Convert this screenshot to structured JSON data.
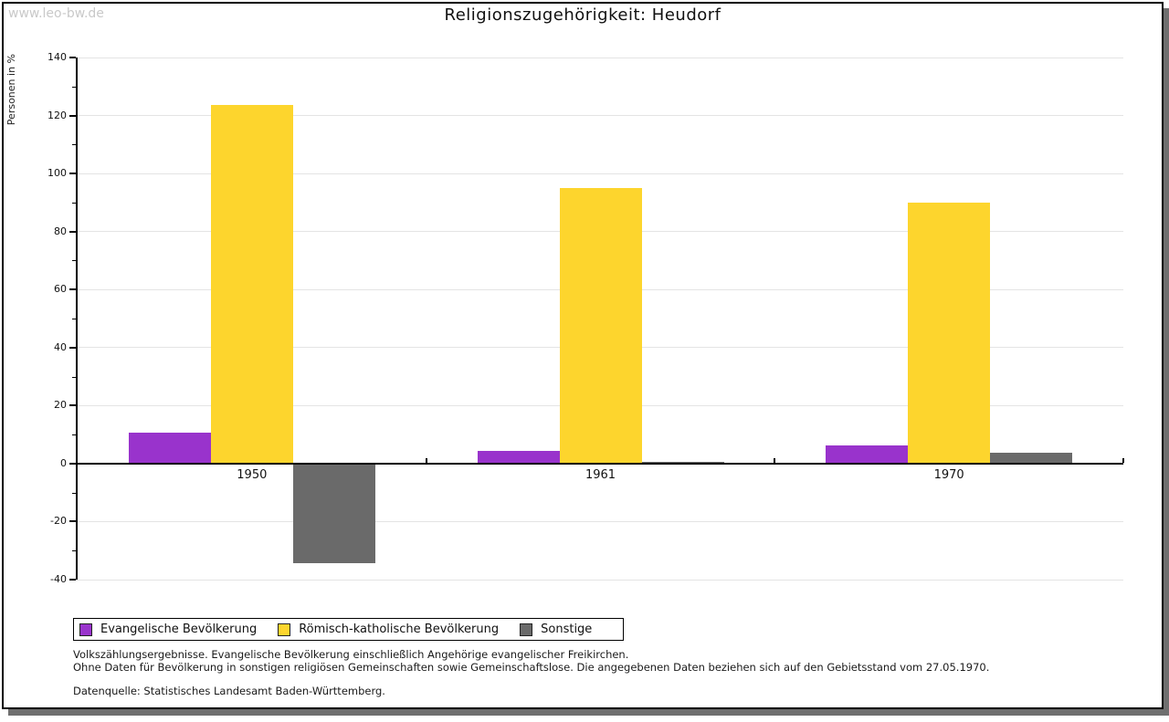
{
  "watermark": "www.leo-bw.de",
  "header": {
    "title": "Religionszugehörigkeit: Heudorf"
  },
  "chart_data": {
    "type": "bar",
    "title": "Religionszugehörigkeit: Heudorf",
    "xlabel": "",
    "ylabel": "Personen in %",
    "categories": [
      "1950",
      "1961",
      "1970"
    ],
    "series": [
      {
        "name": "Evangelische Bevölkerung",
        "color": "#9933cc",
        "values": [
          10.8,
          4.5,
          6.3
        ]
      },
      {
        "name": "Römisch-katholische Bevölkerung",
        "color": "#fdd52d",
        "values": [
          123.5,
          95.0,
          90.0
        ]
      },
      {
        "name": "Sonstige",
        "color": "#6a6a6a",
        "values": [
          -34.3,
          0.5,
          3.8
        ]
      }
    ],
    "ylim": [
      -40,
      140
    ],
    "ytick_step": 20,
    "yminor_step": 10,
    "grid": true,
    "legend_position": "bottom-left",
    "colors": {
      "gridline": "#e4e4e4",
      "axis": "#000000",
      "frame_shadow": "#6f6f6f",
      "watermark_text": "#c9c9c9"
    }
  },
  "footer": {
    "line1": "Volkszählungsergebnisse. Evangelische Bevölkerung einschließlich Angehörige evangelischer Freikirchen.",
    "line2": "Ohne Daten für Bevölkerung in sonstigen religiösen Gemeinschaften sowie Gemeinschaftslose. Die angegebenen Daten beziehen sich auf den Gebietsstand vom 27.05.1970.",
    "source": "Datenquelle: Statistisches Landesamt Baden-Württemberg."
  }
}
